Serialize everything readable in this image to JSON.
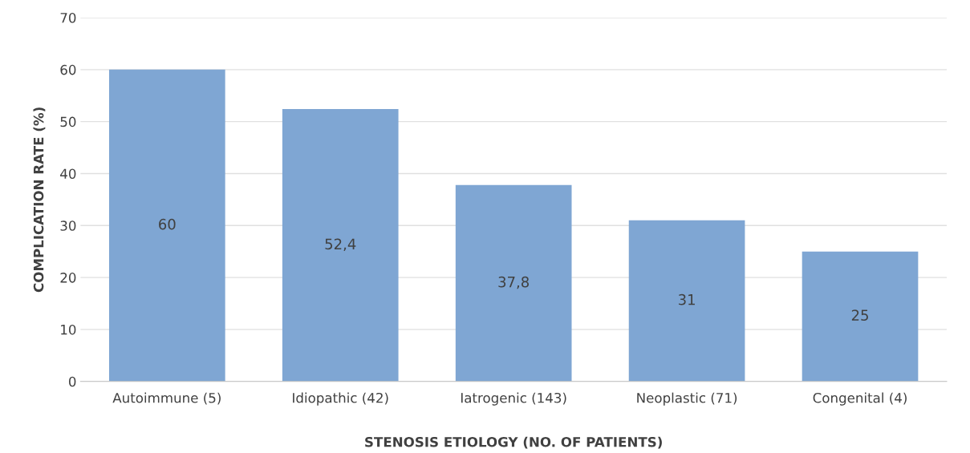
{
  "chart_data": {
    "type": "bar",
    "xlabel": "STENOSIS ETIOLOGY (NO. OF PATIENTS)",
    "ylabel": "COMPLICATION RATE (%)",
    "categories": [
      "Autoimmune (5)",
      "Idiopathic (42)",
      "Iatrogenic (143)",
      "Neoplastic (71)",
      "Congenital (4)"
    ],
    "values": [
      60,
      52.4,
      37.8,
      31,
      25
    ],
    "value_labels": [
      "60",
      "52,4",
      "37,8",
      "31",
      "25"
    ],
    "color": "#7fa6d3",
    "ylim": [
      0,
      70
    ],
    "yticks": [
      0,
      10,
      20,
      30,
      40,
      50,
      60,
      70
    ],
    "grid": "y"
  }
}
